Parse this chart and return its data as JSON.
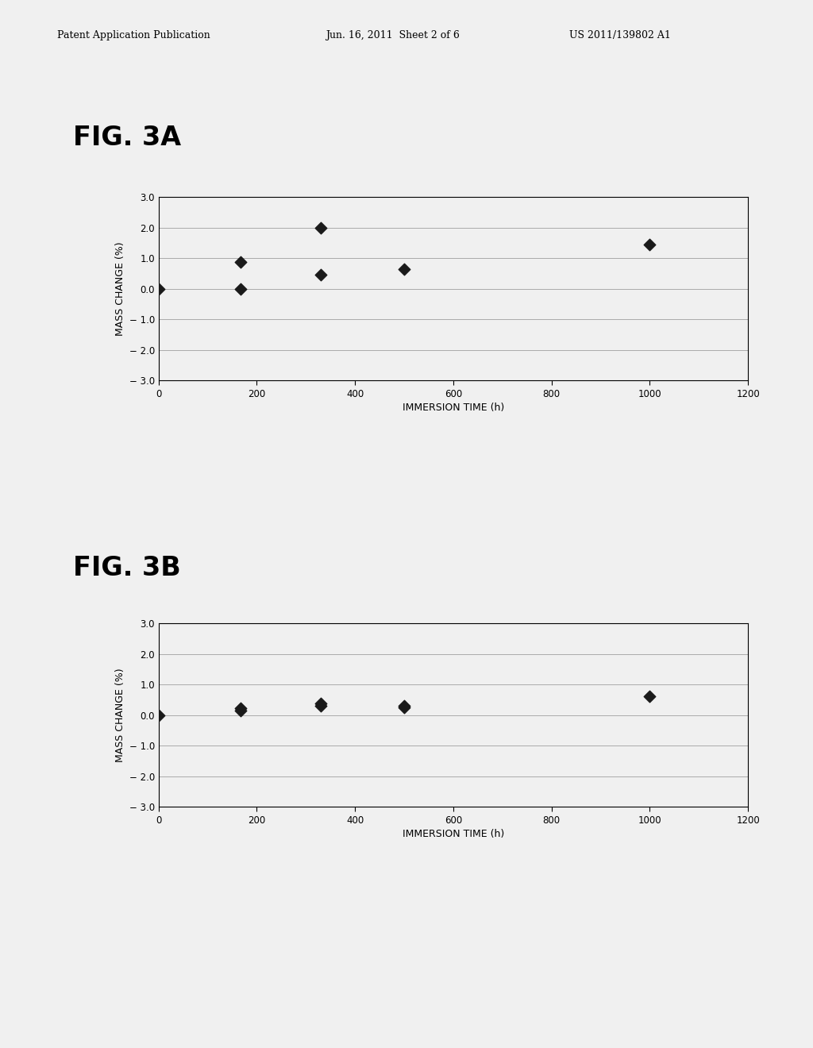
{
  "fig3a_x": [
    0,
    167,
    167,
    330,
    330,
    500,
    1000
  ],
  "fig3a_y": [
    0.0,
    0.88,
    -0.02,
    2.0,
    0.45,
    0.65,
    1.45
  ],
  "fig3b_x": [
    0,
    167,
    167,
    330,
    330,
    500,
    500,
    1000
  ],
  "fig3b_y": [
    0.0,
    0.22,
    0.15,
    0.38,
    0.3,
    0.32,
    0.27,
    0.62
  ],
  "title_3a": "FIG. 3A",
  "title_3b": "FIG. 3B",
  "xlabel": "IMMERSION TIME (h)",
  "ylabel": "MASS CHANGE (%)",
  "xlim": [
    0,
    1200
  ],
  "ylim": [
    -3.0,
    3.0
  ],
  "xticks": [
    0,
    200,
    400,
    600,
    800,
    1000,
    1200
  ],
  "yticks": [
    -3.0,
    -2.0,
    -1.0,
    0.0,
    1.0,
    2.0,
    3.0
  ],
  "ytick_labels": [
    "− 3.0",
    "− 2.0",
    "− 1.0",
    "0.0",
    "1.0",
    "2.0",
    "3.0"
  ],
  "marker_color": "#1a1a1a",
  "background_color": "#f0f0f0",
  "header_left": "Patent Application Publication",
  "header_mid": "Jun. 16, 2011  Sheet 2 of 6",
  "header_right": "US 2011/139802 A1",
  "grid_color": "#aaaaaa",
  "grid_linewidth": 0.7,
  "marker_size": 55
}
